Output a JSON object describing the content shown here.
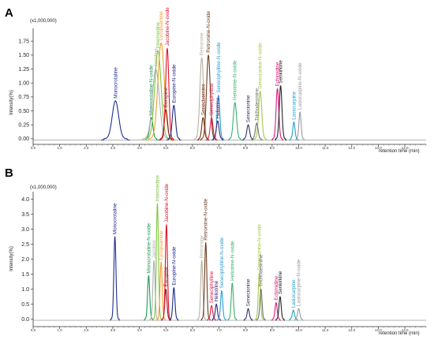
{
  "chart_data": [
    {
      "type": "line",
      "panel_label": "A",
      "multiplier_label": "(x1,000,000)",
      "ylabel": "Intensity(%)",
      "xlabel": "retention time (min)",
      "xlim": [
        0.0,
        14.8
      ],
      "ylim": [
        -0.1,
        1.95
      ],
      "y_ticks": [
        0.0,
        0.25,
        0.5,
        0.75,
        1.0,
        1.25,
        1.5,
        1.75
      ],
      "y_tick_labels": [
        "0.00",
        "0.25",
        "0.50",
        "0.75",
        "1.00",
        "1.25",
        "1.50",
        "1.75"
      ],
      "x_ticks": [
        0.0,
        1.0,
        2.0,
        3.0,
        4.0,
        5.0,
        6.0,
        7.0,
        8.0,
        9.0,
        10.0,
        11.0,
        12.0,
        13.0,
        14.0
      ],
      "x_tick_labels": [
        "0.0",
        "1.0",
        "2.0",
        "3.0",
        "4.0",
        "5.0",
        "6.0",
        "7.0",
        "8.0",
        "9.0",
        "10.0",
        "11.0",
        "12.0",
        "13.0",
        "14.0"
      ],
      "grid": false,
      "series": [
        {
          "name": "Monocrotaline",
          "color": "#1c2f8f",
          "rt": 3.1,
          "height": 0.68,
          "width": 0.12
        },
        {
          "name": "Monocrotaline-N-oxide",
          "color": "#1a9a55",
          "rt": 4.45,
          "height": 0.38,
          "width": 0.06
        },
        {
          "name": "Jacoline",
          "color": "#b0b0b0",
          "rt": 4.62,
          "height": 1.25,
          "width": 0.13
        },
        {
          "name": "Intermedine",
          "color": "#82c341",
          "rt": 4.7,
          "height": 1.58,
          "width": 0.12
        },
        {
          "name": "Lycopsamine",
          "color": "#f0a030",
          "rt": 4.82,
          "height": 1.72,
          "width": 0.12
        },
        {
          "name": "Europine",
          "color": "#8b1a1a",
          "rt": 5.0,
          "height": 0.52,
          "width": 0.06
        },
        {
          "name": "Jacobine-N-oxide",
          "color": "#e0102a",
          "rt": 5.05,
          "height": 1.62,
          "width": 0.06
        },
        {
          "name": "Europine-N-oxide",
          "color": "#1b2a86",
          "rt": 5.3,
          "height": 0.6,
          "width": 0.06
        },
        {
          "name": "Retrorsine",
          "color": "#b8b0a0",
          "rt": 6.35,
          "height": 1.45,
          "width": 0.07
        },
        {
          "name": "Retrorsine-N-oxide",
          "color": "#6b3d1e",
          "rt": 6.6,
          "height": 1.5,
          "width": 0.07
        },
        {
          "name": "Seneciphylline-N-oxide",
          "color": "#2a9ed4",
          "rt": 6.98,
          "height": 0.78,
          "width": 0.05
        },
        {
          "name": "Senecivernine",
          "color": "#7a2a10",
          "rt": 6.4,
          "height": 0.38,
          "width": 0.05
        },
        {
          "name": "Seneciphylline",
          "color": "#d6214e",
          "rt": 6.72,
          "height": 0.38,
          "width": 0.05
        },
        {
          "name": "Heliotrine",
          "color": "#3a2470",
          "rt": 6.95,
          "height": 0.32,
          "width": 0.05
        },
        {
          "name": "Heliotrine-N-oxide",
          "color": "#3bb06a",
          "rt": 7.6,
          "height": 0.65,
          "width": 0.06
        },
        {
          "name": "Senecionine",
          "color": "#2f2f6f",
          "rt": 8.1,
          "height": 0.25,
          "width": 0.05
        },
        {
          "name": "Senecionine-N-oxide",
          "color": "#a6c84a",
          "rt": 8.55,
          "height": 0.85,
          "width": 0.06
        },
        {
          "name": "Trichodesmine",
          "color": "#6f6f6f",
          "rt": 8.42,
          "height": 0.28,
          "width": 0.05
        },
        {
          "name": "Echimidine",
          "color": "#e0167f",
          "rt": 9.2,
          "height": 0.9,
          "width": 0.05
        },
        {
          "name": "Senkirkine",
          "color": "#222222",
          "rt": 9.32,
          "height": 0.95,
          "width": 0.05
        },
        {
          "name": "Lasiocarpine",
          "color": "#1fa0c8",
          "rt": 9.82,
          "height": 0.3,
          "width": 0.04
        },
        {
          "name": "Lasiocarpine-N-oxide",
          "color": "#9a9a9a",
          "rt": 10.05,
          "height": 0.48,
          "width": 0.04
        }
      ]
    },
    {
      "type": "line",
      "panel_label": "B",
      "multiplier_label": "(x1,000,000)",
      "ylabel": "Intensity(%)",
      "xlabel": "retention time (min)",
      "xlim": [
        0.0,
        14.8
      ],
      "ylim": [
        -0.25,
        4.2
      ],
      "y_ticks": [
        0.0,
        0.5,
        1.0,
        1.5,
        2.0,
        2.5,
        3.0,
        3.5,
        4.0
      ],
      "y_tick_labels": [
        "0.0",
        "0.5",
        "1.0",
        "1.5",
        "2.0",
        "2.5",
        "3.0",
        "3.5",
        "4.0"
      ],
      "x_ticks": [
        0.0,
        1.0,
        2.0,
        3.0,
        4.0,
        5.0,
        6.0,
        7.0,
        8.0,
        9.0,
        10.0,
        11.0,
        12.0,
        13.0,
        14.0
      ],
      "x_tick_labels": [
        "0.0",
        "1.0",
        "2.0",
        "3.0",
        "4.0",
        "5.0",
        "6.0",
        "7.0",
        "8.0",
        "9.0",
        "10.0",
        "11.0",
        "12.0",
        "13.0",
        "14.0"
      ],
      "grid": false,
      "series": [
        {
          "name": "Monocrotaline",
          "color": "#1c2f8f",
          "rt": 3.08,
          "height": 2.75,
          "width": 0.04
        },
        {
          "name": "Monocrotaline-N-oxide",
          "color": "#1a9a55",
          "rt": 4.35,
          "height": 1.45,
          "width": 0.04
        },
        {
          "name": "Jacoline",
          "color": "#b0b0b0",
          "rt": 4.55,
          "height": 1.95,
          "width": 0.04
        },
        {
          "name": "Intermedine",
          "color": "#82c341",
          "rt": 4.68,
          "height": 3.85,
          "width": 0.04
        },
        {
          "name": "Lycopsamine",
          "color": "#f0a030",
          "rt": 4.82,
          "height": 1.9,
          "width": 0.04
        },
        {
          "name": "Europine",
          "color": "#8b1a1a",
          "rt": 5.0,
          "height": 1.0,
          "width": 0.04
        },
        {
          "name": "Jacobine-N-oxide",
          "color": "#e0102a",
          "rt": 5.02,
          "height": 3.15,
          "width": 0.04
        },
        {
          "name": "Europine-N-oxide",
          "color": "#1b2a86",
          "rt": 5.3,
          "height": 1.05,
          "width": 0.04
        },
        {
          "name": "Retrorsine",
          "color": "#b8b0a0",
          "rt": 6.35,
          "height": 1.95,
          "width": 0.04
        },
        {
          "name": "Retrorsine-N-oxide",
          "color": "#6b3d1e",
          "rt": 6.5,
          "height": 2.55,
          "width": 0.04
        },
        {
          "name": "Seneciphylline",
          "color": "#d6214e",
          "rt": 6.72,
          "height": 0.45,
          "width": 0.04
        },
        {
          "name": "Heliotrine",
          "color": "#3a2470",
          "rt": 6.9,
          "height": 0.5,
          "width": 0.04
        },
        {
          "name": "Seneciphylline-N-oxide",
          "color": "#2a9ed4",
          "rt": 7.1,
          "height": 0.95,
          "width": 0.04
        },
        {
          "name": "Heliotrine-N-oxide",
          "color": "#3bb06a",
          "rt": 7.5,
          "height": 1.2,
          "width": 0.04
        },
        {
          "name": "Senecionine",
          "color": "#2f2f6f",
          "rt": 8.1,
          "height": 0.35,
          "width": 0.04
        },
        {
          "name": "Senecionine-N-oxide",
          "color": "#a6c84a",
          "rt": 8.52,
          "height": 1.55,
          "width": 0.04
        },
        {
          "name": "Trichodesmine",
          "color": "#6f6f6f",
          "rt": 8.58,
          "height": 1.0,
          "width": 0.04
        },
        {
          "name": "Echimidine",
          "color": "#e0167f",
          "rt": 9.15,
          "height": 0.55,
          "width": 0.04
        },
        {
          "name": "Senkirkine",
          "color": "#222222",
          "rt": 9.3,
          "height": 0.75,
          "width": 0.04
        },
        {
          "name": "Lasiocarpine",
          "color": "#1fa0c8",
          "rt": 9.8,
          "height": 0.3,
          "width": 0.04
        },
        {
          "name": "Lasiocarpine-N-oxide",
          "color": "#9a9a9a",
          "rt": 10.0,
          "height": 0.35,
          "width": 0.04
        }
      ]
    }
  ]
}
